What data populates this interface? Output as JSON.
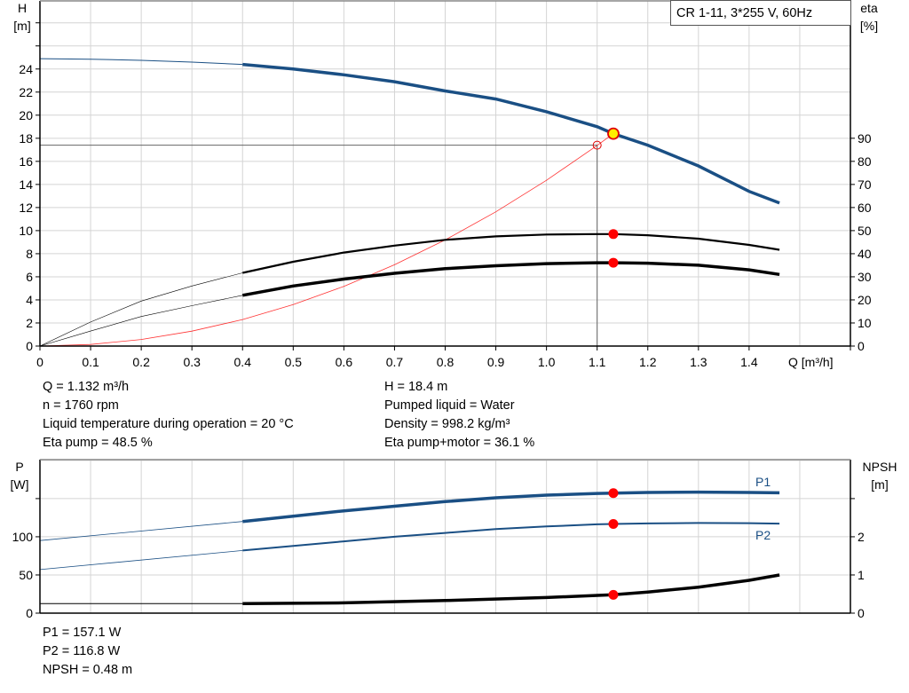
{
  "chart_data": [
    {
      "type": "line",
      "title_box": "CR 1-11, 3*255 V, 60Hz",
      "xlabel": "Q [m³/h]",
      "ylabel_left": [
        "H",
        "[m]"
      ],
      "ylabel_right": [
        "eta",
        "[%]"
      ],
      "xlim": [
        0,
        1.6
      ],
      "ylim_left": [
        0,
        29.9
      ],
      "ylim_right": [
        0,
        149.5
      ],
      "x_ticks": [
        "0",
        "0.1",
        "0.2",
        "0.3",
        "0.4",
        "0.5",
        "0.6",
        "0.7",
        "0.8",
        "0.9",
        "1.0",
        "1.1",
        "1.2",
        "1.3",
        "1.4"
      ],
      "y_left_ticks": [
        "0",
        "2",
        "4",
        "6",
        "8",
        "10",
        "12",
        "14",
        "16",
        "18",
        "20",
        "22",
        "24"
      ],
      "y_right_ticks": [
        "0",
        "10",
        "20",
        "30",
        "40",
        "50",
        "60",
        "70",
        "80",
        "90"
      ],
      "grid": true,
      "colors": {
        "head": "#1a4f84",
        "eta": "#000000",
        "system": "#ff0000",
        "marker_fill": "#ffee00",
        "marker_edge": "#e00000",
        "duty_point": "#ff0000"
      },
      "series": [
        {
          "key": "head",
          "axis": "left",
          "x": [
            0,
            0.1,
            0.2,
            0.3,
            0.4,
            0.5,
            0.6,
            0.7,
            0.8,
            0.9,
            1.0,
            1.1,
            1.132,
            1.2,
            1.3,
            1.4,
            1.46
          ],
          "y": [
            24.9,
            24.85,
            24.75,
            24.6,
            24.4,
            24.0,
            23.5,
            22.9,
            22.1,
            21.4,
            20.3,
            19.0,
            18.4,
            17.4,
            15.6,
            13.4,
            12.4
          ]
        },
        {
          "key": "eta_pump",
          "axis": "right",
          "x": [
            0,
            0.1,
            0.2,
            0.3,
            0.4,
            0.5,
            0.6,
            0.7,
            0.8,
            0.9,
            1.0,
            1.1,
            1.132,
            1.2,
            1.3,
            1.4,
            1.46
          ],
          "y": [
            0,
            10.4,
            19.5,
            26,
            31.7,
            36.5,
            40.5,
            43.5,
            46,
            47.5,
            48.3,
            48.5,
            48.5,
            48,
            46.5,
            43.8,
            41.7
          ]
        },
        {
          "key": "eta_pump_motor",
          "axis": "right",
          "x": [
            0,
            0.1,
            0.2,
            0.3,
            0.4,
            0.5,
            0.6,
            0.7,
            0.8,
            0.9,
            1.0,
            1.1,
            1.132,
            1.2,
            1.3,
            1.4,
            1.46
          ],
          "y": [
            0,
            6.5,
            12.8,
            17.5,
            22,
            26,
            29,
            31.5,
            33.5,
            34.8,
            35.7,
            36.1,
            36.1,
            35.9,
            35,
            33,
            31
          ]
        },
        {
          "key": "system",
          "axis": "left",
          "x": [
            0,
            0.1,
            0.2,
            0.3,
            0.4,
            0.5,
            0.6,
            0.7,
            0.8,
            0.9,
            1.0,
            1.1,
            1.132
          ],
          "y": [
            0,
            0.14,
            0.57,
            1.29,
            2.3,
            3.59,
            5.17,
            7.04,
            9.19,
            11.63,
            14.36,
            17.38,
            18.4
          ]
        }
      ],
      "duty_point": {
        "q": 1.132,
        "h": 18.4,
        "eta_pump": 48.5,
        "eta_pump_motor": 36.1
      },
      "reference_point": {
        "q": 1.1,
        "h": 17.4
      }
    },
    {
      "type": "line",
      "ylabel_left": [
        "P",
        "[W]"
      ],
      "ylabel_right": [
        "NPSH",
        "[m]"
      ],
      "xlim": [
        0,
        1.6
      ],
      "ylim_left": [
        0,
        201
      ],
      "ylim_right": [
        0,
        4.02
      ],
      "y_left_ticks": [
        "0",
        "50",
        "100"
      ],
      "y_right_ticks": [
        "0",
        "1",
        "2"
      ],
      "grid": true,
      "series": [
        {
          "key": "p1",
          "name": "P1",
          "axis": "left",
          "x": [
            0,
            0.4,
            0.5,
            0.6,
            0.7,
            0.8,
            0.9,
            1.0,
            1.1,
            1.132,
            1.2,
            1.3,
            1.4,
            1.46
          ],
          "y": [
            95,
            120,
            127,
            134,
            140,
            146,
            151,
            154.5,
            156.7,
            157.1,
            158,
            158.5,
            158,
            157.5
          ]
        },
        {
          "key": "p2",
          "name": "P2",
          "axis": "left",
          "x": [
            0,
            0.4,
            0.5,
            0.6,
            0.7,
            0.8,
            0.9,
            1.0,
            1.1,
            1.132,
            1.2,
            1.3,
            1.4,
            1.46
          ],
          "y": [
            57,
            82,
            88,
            94,
            100,
            105,
            110,
            113.5,
            116.3,
            116.8,
            117.5,
            118,
            117.8,
            117.2
          ]
        },
        {
          "key": "npsh",
          "axis": "right",
          "x": [
            0,
            0.4,
            0.6,
            0.8,
            1.0,
            1.132,
            1.2,
            1.3,
            1.4,
            1.46
          ],
          "y": [
            0.25,
            0.25,
            0.27,
            0.33,
            0.41,
            0.48,
            0.55,
            0.68,
            0.86,
            1.0
          ]
        }
      ],
      "duty_point": {
        "q": 1.132,
        "p1": 157.1,
        "p2": 116.8,
        "npsh": 0.48
      }
    }
  ],
  "info_top_left": [
    "Q = 1.132 m³/h",
    "n = 1760 rpm",
    "Liquid temperature during operation = 20 °C",
    "Eta pump = 48.5 %"
  ],
  "info_top_right": [
    "H = 18.4 m",
    "Pumped liquid = Water",
    "Density = 998.2 kg/m³",
    "Eta pump+motor = 36.1 %"
  ],
  "info_bottom": [
    "P1 = 157.1 W",
    "P2 = 116.8 W",
    "NPSH = 0.48 m"
  ]
}
